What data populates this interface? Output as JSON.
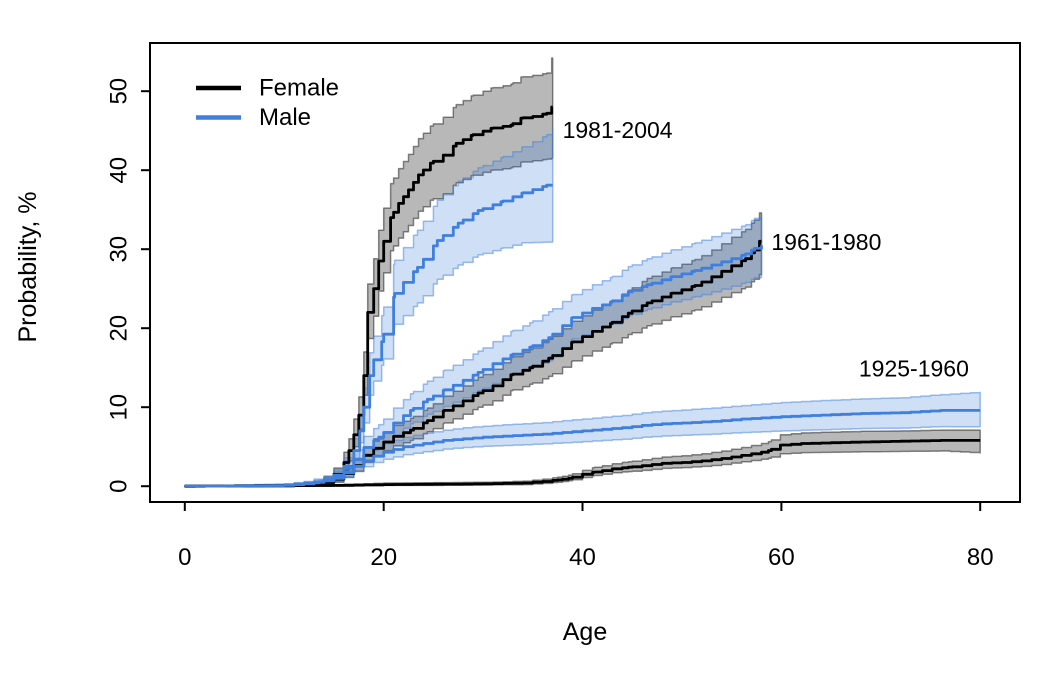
{
  "chart_data": {
    "type": "line",
    "subtype": "step-survival-curves-with-confidence-bands",
    "title": "",
    "xlabel": "Age",
    "ylabel": "Probability, %",
    "x_ticks": [
      0,
      20,
      40,
      60,
      80
    ],
    "y_ticks": [
      0,
      10,
      20,
      30,
      40,
      50
    ],
    "x_domain": [
      -3.5,
      84
    ],
    "y_domain": [
      -2,
      56.1
    ],
    "grid": "off",
    "legend_position": "top-left-inside",
    "colors": {
      "female_line": "#000000",
      "male_line": "#3f7fdd",
      "female_band_fill": "rgba(0,0,0,0.28)",
      "female_band_edge": "rgba(0,0,0,0.45)",
      "male_band_fill": "rgba(63,127,221,0.25)",
      "male_band_edge": "rgba(63,127,221,0.5)",
      "axis": "#000000"
    },
    "legend": {
      "entries": [
        {
          "label": "Female",
          "color_key": "female_line"
        },
        {
          "label": "Male",
          "color_key": "male_line"
        }
      ]
    },
    "annotations": [
      {
        "text": "1981-2004",
        "age": 38.0,
        "pct": 45.1
      },
      {
        "text": "1961-1980",
        "age": 59.0,
        "pct": 30.9
      },
      {
        "text": "1925-1960",
        "age": 67.8,
        "pct": 14.9
      }
    ],
    "series": [
      {
        "id": "female-1981-2004",
        "cohort": "1981-2004",
        "sex": "Female",
        "color_key": "female_line",
        "band_fill_key": "female_band_fill",
        "band_edge_key": "female_band_edge",
        "points": [
          [
            0,
            0,
            0,
            0
          ],
          [
            10,
            0.05,
            0,
            0.2
          ],
          [
            12,
            0.1,
            0,
            0.3
          ],
          [
            13,
            0.3,
            0.1,
            0.6
          ],
          [
            14,
            0.7,
            0.3,
            1.2
          ],
          [
            15,
            1.5,
            0.9,
            2.3
          ],
          [
            16,
            3,
            2,
            4.3
          ],
          [
            16.5,
            4.5,
            3.2,
            6
          ],
          [
            17,
            6.5,
            5,
            8.5
          ],
          [
            17.5,
            9,
            7.2,
            11.3
          ],
          [
            18,
            14,
            11.5,
            17
          ],
          [
            18.4,
            22,
            18.7,
            25.6
          ],
          [
            19,
            25,
            21.5,
            28.8
          ],
          [
            19.5,
            28.5,
            24.7,
            32.4
          ],
          [
            20,
            31,
            27,
            35.2
          ],
          [
            20.7,
            34,
            29.8,
            38.3
          ],
          [
            21.5,
            35.8,
            31.4,
            40.2
          ],
          [
            22.5,
            37.5,
            33,
            42
          ],
          [
            23.5,
            39.4,
            34.8,
            44
          ],
          [
            24.7,
            40.9,
            36.2,
            45.6
          ],
          [
            26,
            41.9,
            37,
            46.7
          ],
          [
            27.3,
            43.4,
            38.4,
            48.3
          ],
          [
            28.8,
            44.4,
            39.3,
            49.4
          ],
          [
            30.8,
            45.3,
            40,
            50.4
          ],
          [
            32.8,
            45.7,
            40.3,
            50.9
          ],
          [
            33.8,
            46.6,
            41,
            51.8
          ],
          [
            35,
            46.8,
            41.2,
            52
          ],
          [
            36.4,
            47.2,
            41.4,
            52.3
          ],
          [
            36.9,
            48,
            41.5,
            54.2
          ],
          [
            37,
            48,
            41.5,
            54.2
          ]
        ]
      },
      {
        "id": "male-1981-2004",
        "cohort": "1981-2004",
        "sex": "Male",
        "color_key": "male_line",
        "band_fill_key": "male_band_fill",
        "band_edge_key": "male_band_edge",
        "points": [
          [
            0,
            0,
            0,
            0
          ],
          [
            10,
            0.05,
            0,
            0.2
          ],
          [
            12,
            0.15,
            0,
            0.4
          ],
          [
            13,
            0.3,
            0.1,
            0.6
          ],
          [
            14,
            0.6,
            0.3,
            1.1
          ],
          [
            15,
            1.2,
            0.7,
            1.9
          ],
          [
            16,
            2.5,
            1.7,
            3.6
          ],
          [
            17,
            4.5,
            3.3,
            6
          ],
          [
            17.6,
            7,
            5.5,
            9
          ],
          [
            18,
            10,
            8,
            12.4
          ],
          [
            18.6,
            14,
            11.5,
            16.9
          ],
          [
            19,
            16,
            13.3,
            19
          ],
          [
            19.8,
            18.3,
            15.3,
            21.6
          ],
          [
            21.1,
            24.4,
            20.5,
            28.6
          ],
          [
            22,
            25.8,
            21.6,
            30.2
          ],
          [
            23.4,
            27.7,
            23.2,
            32.4
          ],
          [
            25.4,
            31.1,
            26.2,
            36.2
          ],
          [
            27.5,
            33.3,
            28,
            38.6
          ],
          [
            29.5,
            34.9,
            29.3,
            40.3
          ],
          [
            31.8,
            36,
            30.1,
            41.6
          ],
          [
            33.9,
            37.1,
            30.8,
            42.9
          ],
          [
            36.4,
            38.1,
            30.9,
            44.5
          ],
          [
            37,
            38.1,
            30.9,
            45.3
          ]
        ]
      },
      {
        "id": "female-1961-1980",
        "cohort": "1961-1980",
        "sex": "Female",
        "color_key": "female_line",
        "band_fill_key": "female_band_fill",
        "band_edge_key": "female_band_edge",
        "points": [
          [
            0,
            0,
            0,
            0
          ],
          [
            11,
            0.1,
            0,
            0.25
          ],
          [
            13,
            0.3,
            0.1,
            0.6
          ],
          [
            14,
            0.5,
            0.25,
            0.9
          ],
          [
            15,
            0.9,
            0.5,
            1.4
          ],
          [
            16,
            1.6,
            1.1,
            2.3
          ],
          [
            17,
            2.6,
            1.9,
            3.5
          ],
          [
            18,
            3.9,
            3,
            5
          ],
          [
            19,
            4.8,
            3.8,
            6
          ],
          [
            20,
            5.6,
            4.5,
            6.9
          ],
          [
            21,
            6.3,
            5.1,
            7.7
          ],
          [
            22.7,
            7.1,
            5.8,
            8.6
          ],
          [
            24.4,
            8.3,
            6.9,
            9.9
          ],
          [
            26.1,
            9.6,
            8,
            11.4
          ],
          [
            28,
            10.8,
            9.1,
            12.7
          ],
          [
            29.5,
            11.8,
            10,
            13.8
          ],
          [
            31,
            12.7,
            10.8,
            14.8
          ],
          [
            32.8,
            14.1,
            12.1,
            16.3
          ],
          [
            34.7,
            15,
            12.9,
            17.3
          ],
          [
            36.6,
            16.2,
            13.9,
            18.6
          ],
          [
            38.9,
            18.2,
            15.8,
            20.8
          ],
          [
            41,
            19.6,
            17.1,
            22.3
          ],
          [
            42.8,
            20.6,
            18,
            23.4
          ],
          [
            44.6,
            21.9,
            19.2,
            24.8
          ],
          [
            46.5,
            23.2,
            20.3,
            26.3
          ],
          [
            48.9,
            24.4,
            21.4,
            27.6
          ],
          [
            51.3,
            25.4,
            22.3,
            28.7
          ],
          [
            53,
            26.5,
            23.3,
            29.9
          ],
          [
            55,
            27.9,
            24.5,
            31.5
          ],
          [
            56.4,
            28.8,
            25.2,
            32.5
          ],
          [
            57.3,
            29.9,
            26.2,
            33.7
          ],
          [
            57.8,
            31,
            26.8,
            34.6
          ],
          [
            58,
            31,
            26.8,
            34.6
          ]
        ]
      },
      {
        "id": "male-1961-1980",
        "cohort": "1961-1980",
        "sex": "Male",
        "color_key": "male_line",
        "band_fill_key": "male_band_fill",
        "band_edge_key": "male_band_edge",
        "points": [
          [
            0,
            0,
            0,
            0
          ],
          [
            10,
            0.1,
            0,
            0.3
          ],
          [
            12,
            0.3,
            0.1,
            0.6
          ],
          [
            13,
            0.5,
            0.25,
            0.9
          ],
          [
            14,
            0.8,
            0.5,
            1.3
          ],
          [
            15,
            1.4,
            0.9,
            2.1
          ],
          [
            16,
            2.3,
            1.6,
            3.2
          ],
          [
            17,
            3.4,
            2.5,
            4.6
          ],
          [
            18,
            4.9,
            3.8,
            6.3
          ],
          [
            19.5,
            6.2,
            4.9,
            7.8
          ],
          [
            21,
            8,
            6.5,
            9.9
          ],
          [
            22.7,
            9.6,
            7.9,
            11.7
          ],
          [
            24.4,
            11,
            9.1,
            13.3
          ],
          [
            26.1,
            12.2,
            10.1,
            14.7
          ],
          [
            28,
            13.4,
            11.2,
            16
          ],
          [
            29.5,
            14.4,
            12.1,
            17.1
          ],
          [
            31,
            15.5,
            13,
            18.3
          ],
          [
            32.8,
            16.6,
            14,
            19.6
          ],
          [
            34.7,
            17.6,
            14.9,
            20.7
          ],
          [
            36.6,
            18.8,
            15.9,
            22.1
          ],
          [
            38.9,
            21.3,
            18.6,
            24.2
          ],
          [
            41,
            22.5,
            19.7,
            25.5
          ],
          [
            42.8,
            23.3,
            20.4,
            26.4
          ],
          [
            44.6,
            24.6,
            21.6,
            27.8
          ],
          [
            46.5,
            25.5,
            22.4,
            28.8
          ],
          [
            48.9,
            26.5,
            23.3,
            29.9
          ],
          [
            51.3,
            27.3,
            24,
            30.8
          ],
          [
            53,
            28,
            24.6,
            31.6
          ],
          [
            55,
            28.8,
            25.3,
            32.5
          ],
          [
            56.4,
            29.4,
            25.8,
            33.1
          ],
          [
            57.3,
            30.1,
            26.4,
            33.9
          ],
          [
            58,
            30.5,
            26.7,
            34.3
          ]
        ]
      },
      {
        "id": "female-1925-1960",
        "cohort": "1925-1960",
        "sex": "Female",
        "color_key": "female_line",
        "band_fill_key": "female_band_fill",
        "band_edge_key": "female_band_edge",
        "points": [
          [
            0,
            0,
            0,
            0
          ],
          [
            15,
            0.1,
            0,
            0.2
          ],
          [
            20,
            0.2,
            0.1,
            0.4
          ],
          [
            25,
            0.25,
            0.1,
            0.45
          ],
          [
            30,
            0.3,
            0.15,
            0.5
          ],
          [
            34,
            0.4,
            0.2,
            0.65
          ],
          [
            36,
            0.6,
            0.35,
            0.9
          ],
          [
            37.5,
            0.8,
            0.5,
            1.15
          ],
          [
            38.6,
            1,
            0.7,
            1.4
          ],
          [
            40,
            1.5,
            1.1,
            2
          ],
          [
            41.2,
            1.8,
            1.35,
            2.4
          ],
          [
            43,
            2.2,
            1.7,
            2.85
          ],
          [
            44.6,
            2.4,
            1.85,
            3.1
          ],
          [
            46,
            2.6,
            2,
            3.35
          ],
          [
            48,
            2.9,
            2.25,
            3.7
          ],
          [
            50,
            3,
            2.35,
            3.85
          ],
          [
            52,
            3.2,
            2.5,
            4.1
          ],
          [
            54,
            3.5,
            2.75,
            4.45
          ],
          [
            56,
            3.9,
            3.1,
            4.9
          ],
          [
            58,
            4.3,
            3.4,
            5.4
          ],
          [
            58.7,
            4.5,
            3.55,
            5.65
          ],
          [
            59.9,
            5.2,
            4.1,
            6.5
          ],
          [
            62,
            5.4,
            4.25,
            6.75
          ],
          [
            65,
            5.5,
            4.3,
            6.85
          ],
          [
            68,
            5.6,
            4.35,
            6.95
          ],
          [
            72,
            5.7,
            4.4,
            7
          ],
          [
            76,
            5.8,
            4.45,
            7.1
          ],
          [
            80,
            5.8,
            4.2,
            7.1
          ]
        ]
      },
      {
        "id": "male-1925-1960",
        "cohort": "1925-1960",
        "sex": "Male",
        "color_key": "male_line",
        "band_fill_key": "male_band_fill",
        "band_edge_key": "male_band_edge",
        "points": [
          [
            0,
            0,
            0,
            0
          ],
          [
            8,
            0.05,
            0,
            0.15
          ],
          [
            10,
            0.1,
            0,
            0.25
          ],
          [
            12,
            0.3,
            0.15,
            0.55
          ],
          [
            13.5,
            0.5,
            0.3,
            0.8
          ],
          [
            15,
            1,
            0.65,
            1.5
          ],
          [
            16,
            1.7,
            1.2,
            2.4
          ],
          [
            17,
            2.5,
            1.85,
            3.3
          ],
          [
            18,
            3.2,
            2.45,
            4.1
          ],
          [
            19,
            3.8,
            3,
            4.8
          ],
          [
            20,
            4.3,
            3.4,
            5.4
          ],
          [
            22,
            5,
            4,
            6.2
          ],
          [
            24,
            5.4,
            4.35,
            6.7
          ],
          [
            26,
            5.8,
            4.7,
            7.1
          ],
          [
            28,
            6,
            4.9,
            7.4
          ],
          [
            30,
            6.2,
            5.05,
            7.6
          ],
          [
            33,
            6.4,
            5.2,
            7.85
          ],
          [
            36,
            6.6,
            5.35,
            8.05
          ],
          [
            38,
            6.8,
            5.5,
            8.3
          ],
          [
            40,
            7,
            5.65,
            8.5
          ],
          [
            42,
            7.2,
            5.8,
            8.75
          ],
          [
            44,
            7.4,
            5.95,
            8.95
          ],
          [
            46,
            7.7,
            6.2,
            9.3
          ],
          [
            48,
            7.9,
            6.35,
            9.5
          ],
          [
            50,
            8,
            6.45,
            9.65
          ],
          [
            53,
            8.2,
            6.6,
            9.9
          ],
          [
            56,
            8.5,
            6.8,
            10.2
          ],
          [
            60,
            8.8,
            7,
            10.6
          ],
          [
            64,
            9,
            7.15,
            10.85
          ],
          [
            68,
            9.2,
            7.3,
            11.05
          ],
          [
            72,
            9.3,
            7.35,
            11.2
          ],
          [
            76,
            9.6,
            7.55,
            11.6
          ],
          [
            80,
            9.6,
            7.5,
            11.9
          ]
        ]
      }
    ]
  }
}
